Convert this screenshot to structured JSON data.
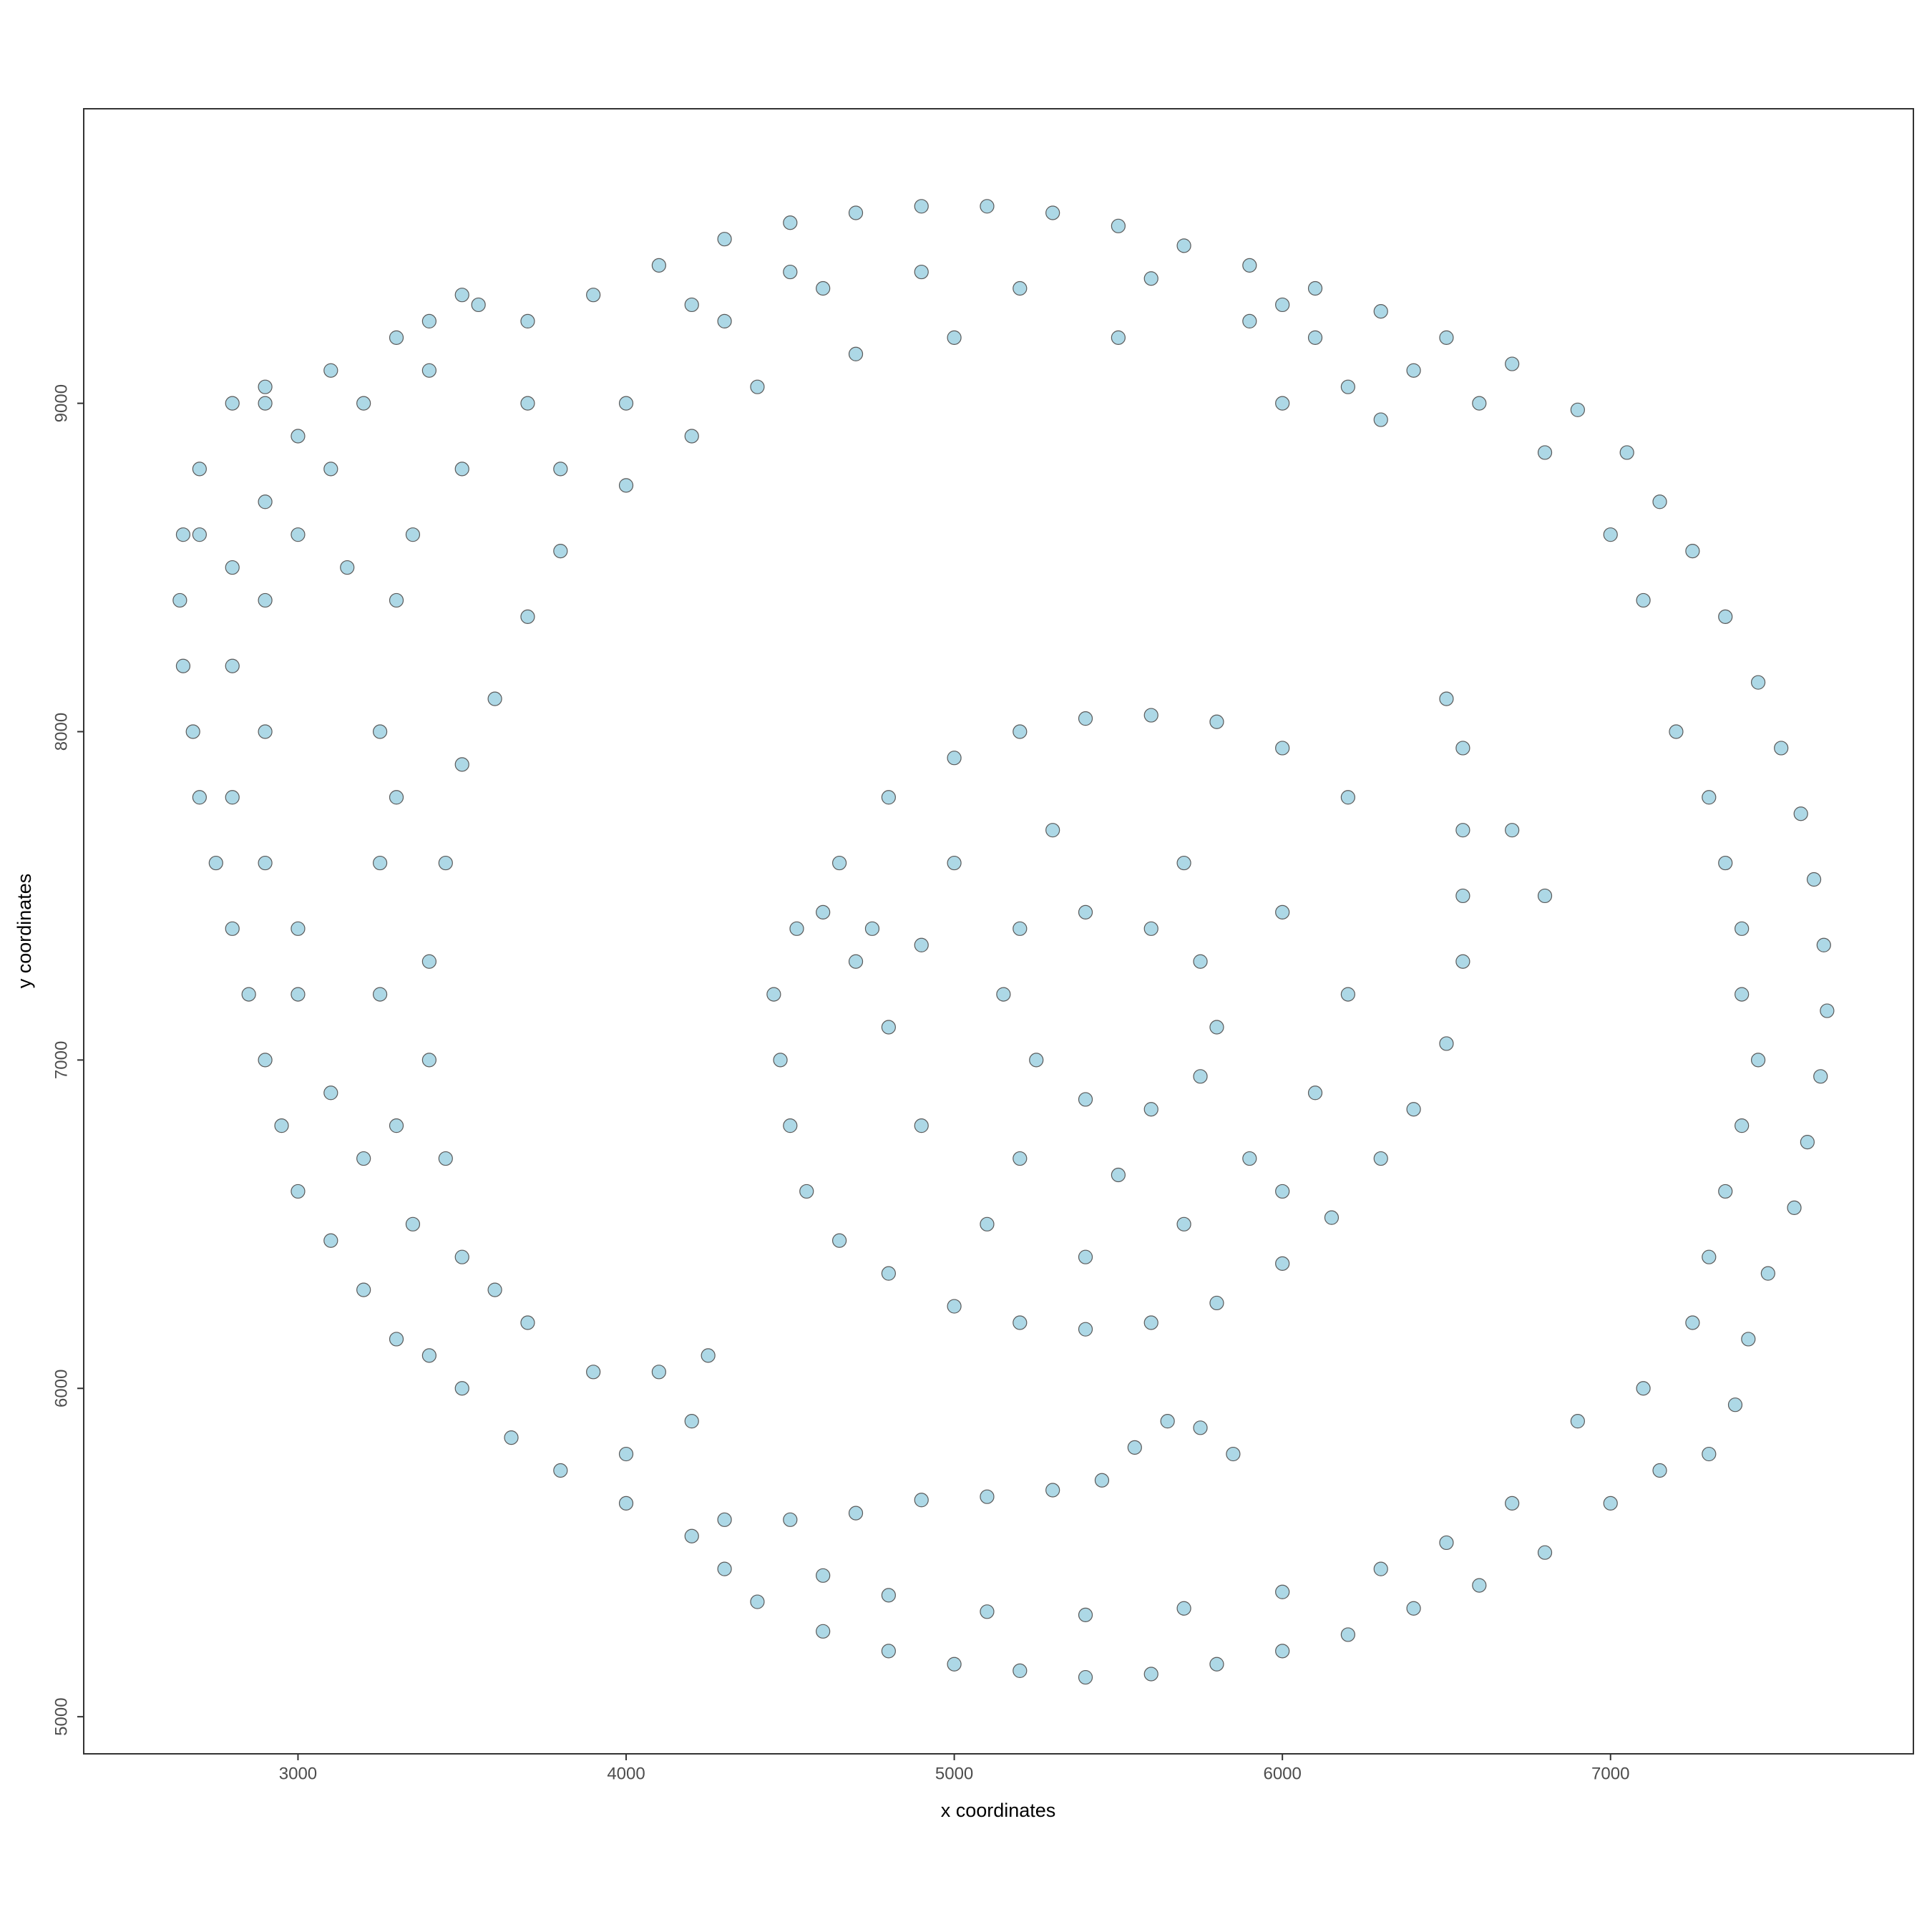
{
  "chart_data": {
    "type": "scatter",
    "x_label": "x coordinates",
    "y_label": "y coordinates",
    "xlim": [
      2347,
      7923
    ],
    "ylim": [
      4887,
      9897
    ],
    "xticks": [
      3000,
      4000,
      5000,
      6000,
      7000
    ],
    "yticks": [
      5000,
      6000,
      7000,
      8000,
      9000
    ],
    "color": "#add8e6",
    "edge_color": "#5a5a5a",
    "grid": false,
    "x": [
      3700,
      3900,
      4100,
      4300,
      4500,
      4700,
      4900,
      5100,
      5300,
      5500,
      5700,
      5900,
      6100,
      6300,
      6500,
      6700,
      6900,
      7050,
      7150,
      7250,
      7350,
      7450,
      7520,
      7580,
      7620,
      7650,
      7660,
      7640,
      7600,
      7560,
      7480,
      7420,
      7380,
      7300,
      7150,
      7000,
      6800,
      6600,
      6400,
      6200,
      6000,
      5800,
      5600,
      5400,
      5200,
      5000,
      4800,
      4600,
      4400,
      4300,
      4200,
      4000,
      3800,
      3650,
      3500,
      3400,
      3300,
      3200,
      3100,
      3000,
      2950,
      2900,
      2850,
      2800,
      2750,
      2700,
      2680,
      2650,
      2640,
      2650,
      2700,
      2800,
      2900,
      3100,
      3300,
      3500,
      7400,
      7450,
      7400,
      7350,
      7300,
      7250,
      7100,
      6900,
      6700,
      6500,
      6300,
      6000,
      5700,
      5400,
      5100,
      4800,
      4600,
      7200,
      7300,
      7350,
      7400,
      7100,
      7000,
      6800,
      6600,
      6400,
      6200,
      6000,
      6100,
      6300,
      2800,
      2900,
      3000,
      3200,
      3400,
      2800,
      2900,
      2800,
      2900,
      3000,
      2700,
      3000,
      3100,
      2900,
      3000,
      3100,
      3200,
      2900,
      3150,
      3400,
      3550,
      5000,
      4700,
      4400,
      4200,
      4000,
      3800,
      3700,
      3600,
      3500,
      3450,
      3400,
      3400,
      3450,
      3500,
      3700,
      3900,
      4100,
      4250,
      4200,
      4000,
      4300,
      4500,
      4700,
      4900,
      5100,
      5300,
      5450,
      5550,
      5650,
      5750,
      5850,
      5500,
      5900,
      5200,
      4900,
      4600,
      4300,
      4000,
      3800,
      3300,
      3250,
      3250,
      3250,
      3300,
      3350,
      3600,
      3300,
      3350,
      3500,
      3700,
      4200,
      4500,
      5600,
      6000,
      4450,
      4470,
      4500,
      4550,
      4650,
      4800,
      5000,
      5200,
      5400,
      5600,
      5800,
      6000,
      6150,
      6300,
      6400,
      6500,
      6550,
      6550,
      6550,
      6550,
      6500,
      6700,
      6800,
      6200,
      6000,
      5800,
      5600,
      5400,
      5200,
      5000,
      4800,
      4650,
      4520,
      4600,
      4750,
      5200,
      5400,
      5600,
      5750,
      5800,
      5750,
      5600,
      5400,
      5250,
      5150,
      5000,
      5300,
      5700,
      6000,
      6200,
      6100,
      5900,
      5500,
      5200,
      4900,
      4800,
      4700,
      4900,
      5100,
      5400,
      5700,
      6000
    ],
    "values": [
      9250,
      9330,
      9420,
      9500,
      9550,
      9580,
      9600,
      9600,
      9580,
      9540,
      9480,
      9420,
      9350,
      9280,
      9200,
      9120,
      8980,
      8850,
      8700,
      8550,
      8350,
      8150,
      7950,
      7750,
      7550,
      7350,
      7150,
      6950,
      6750,
      6550,
      6350,
      6150,
      5950,
      5800,
      5750,
      5650,
      5500,
      5400,
      5330,
      5250,
      5200,
      5160,
      5130,
      5120,
      5140,
      5160,
      5200,
      5260,
      5350,
      5450,
      5550,
      5650,
      5750,
      5850,
      6000,
      6100,
      6150,
      6300,
      6450,
      6600,
      6800,
      7000,
      7200,
      7400,
      7600,
      7800,
      8000,
      8200,
      8400,
      8600,
      8800,
      9000,
      9050,
      9100,
      9200,
      9330,
      7200,
      7000,
      6800,
      6600,
      6400,
      6200,
      6000,
      5900,
      5650,
      5530,
      5450,
      5380,
      5330,
      5310,
      5320,
      5370,
      5430,
      8000,
      7800,
      7600,
      7400,
      8400,
      8600,
      8850,
      9000,
      9100,
      9050,
      9000,
      9200,
      8950,
      8500,
      8700,
      8900,
      9000,
      9100,
      8200,
      8000,
      7800,
      7600,
      7400,
      8600,
      8600,
      8800,
      8400,
      7200,
      6900,
      6700,
      9000,
      8500,
      9250,
      9300,
      9200,
      9150,
      9050,
      8900,
      8750,
      8550,
      8350,
      8100,
      7900,
      7600,
      7300,
      7000,
      6700,
      6400,
      6200,
      6050,
      6050,
      6100,
      5900,
      5800,
      5600,
      5600,
      5620,
      5660,
      5670,
      5690,
      5720,
      5820,
      5900,
      5880,
      5800,
      9200,
      9250,
      9350,
      9400,
      9350,
      9250,
      9000,
      8800,
      8400,
      8000,
      7600,
      7200,
      6800,
      6500,
      6300,
      7800,
      8600,
      8800,
      9000,
      9300,
      9400,
      9380,
      9300,
      7200,
      7000,
      6800,
      6600,
      6450,
      6350,
      6250,
      6200,
      6180,
      6200,
      6260,
      6380,
      6520,
      6700,
      6850,
      7050,
      7300,
      7500,
      7700,
      7950,
      8100,
      7700,
      7500,
      7800,
      7950,
      8030,
      8050,
      8040,
      8000,
      7920,
      7800,
      7600,
      7400,
      7450,
      7400,
      7400,
      7450,
      7400,
      7300,
      7100,
      6950,
      6850,
      6880,
      7000,
      7200,
      7600,
      7700,
      7600,
      7450,
      7200,
      6900,
      6700,
      6650,
      6700,
      6800,
      7100,
      7300,
      7350,
      6500,
      6400,
      6500,
      6600
    ]
  }
}
